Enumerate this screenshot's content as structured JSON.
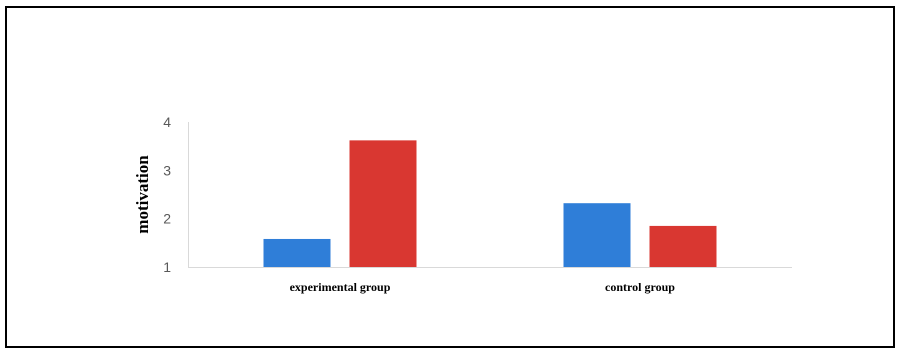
{
  "chart_data": {
    "type": "bar",
    "categories": [
      "experimental group",
      "control group"
    ],
    "series": [
      {
        "values": [
          1.58,
          2.32
        ],
        "color": "#2f7ed8"
      },
      {
        "values": [
          3.62,
          1.85
        ],
        "color": "#d93731"
      }
    ],
    "ylabel": "motivation",
    "ylim": [
      1,
      4
    ],
    "yticks": [
      1,
      2,
      3,
      4
    ],
    "grid": false,
    "legend": "none"
  }
}
